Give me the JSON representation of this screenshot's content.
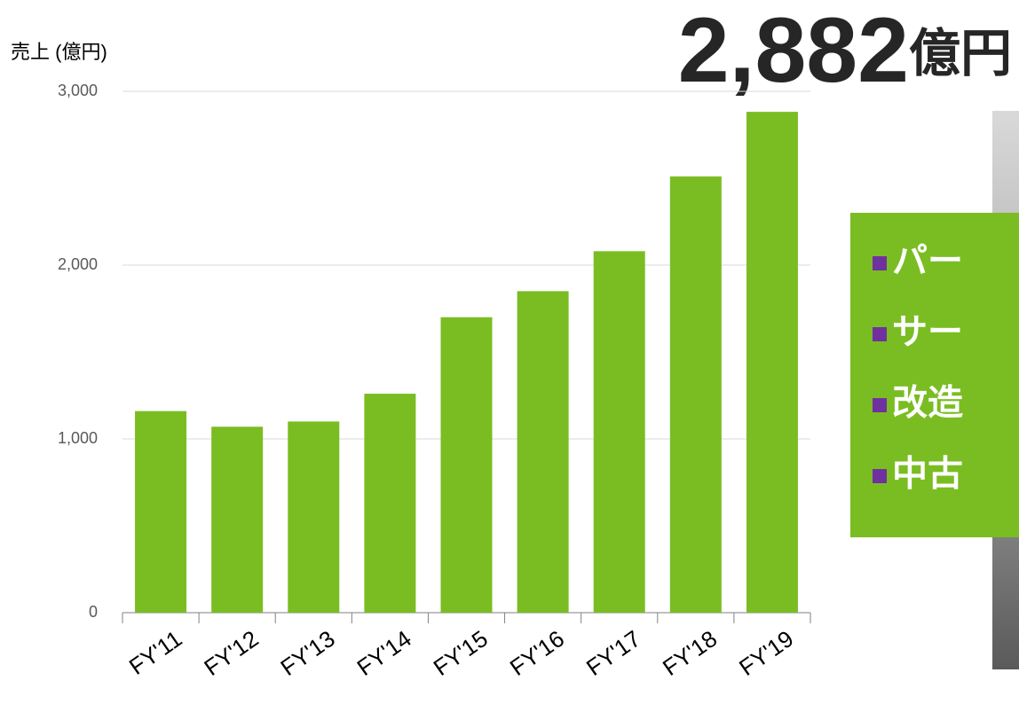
{
  "chart_data": {
    "type": "bar",
    "y_axis_label": "売上 (億円)",
    "headline_value": "2,882",
    "headline_unit": "億円",
    "bullets": [
      "パー",
      "サー",
      "改造",
      "中古"
    ],
    "categories": [
      "FY'11",
      "FY'12",
      "FY'13",
      "FY'14",
      "FY'15",
      "FY'16",
      "FY'17",
      "FY'18",
      "FY'19"
    ],
    "values": [
      1160,
      1070,
      1100,
      1260,
      1700,
      1850,
      2080,
      2510,
      2882
    ],
    "color": "#7abd22",
    "ylim": [
      0,
      3000
    ],
    "yticks": [
      0,
      {
        "value": 1000,
        "label": "1,000"
      },
      {
        "value": 2000,
        "label": "2,000"
      },
      {
        "value": 3000,
        "label": "3,000"
      }
    ],
    "grid": true
  }
}
